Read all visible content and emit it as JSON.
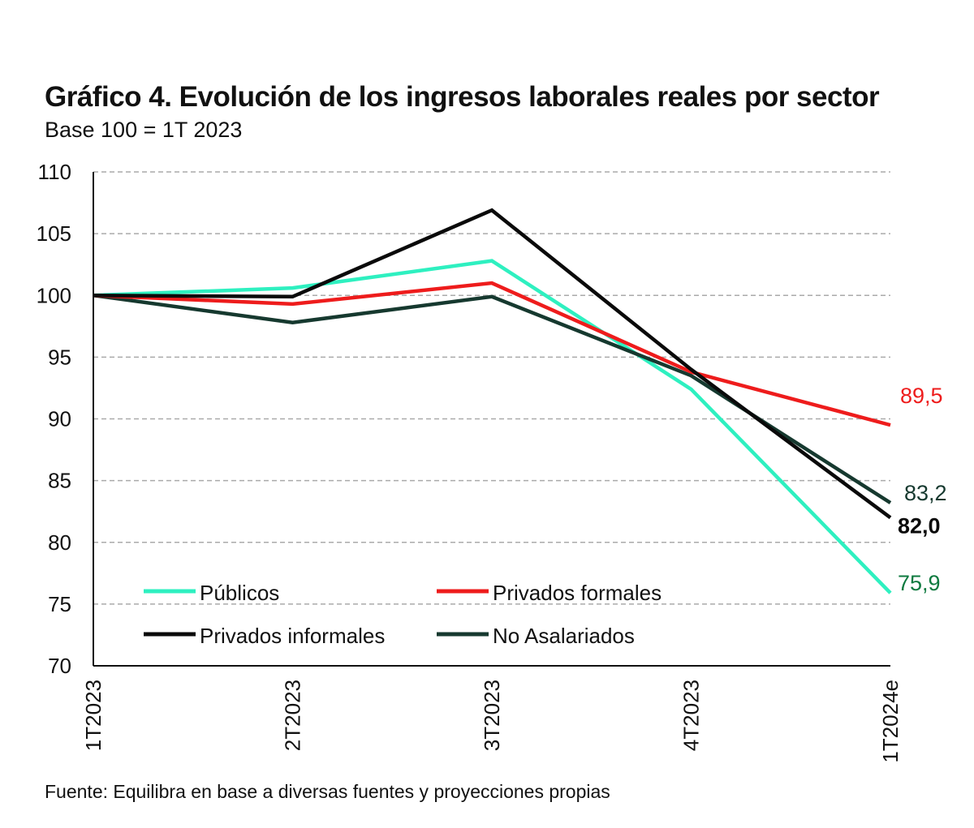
{
  "title": "Gráfico 4. Evolución de los ingresos laborales reales por sector",
  "subtitle": "Base 100 = 1T 2023",
  "source": "Fuente: Equilibra en base a diversas fuentes y proyecciones propias",
  "chart_data": {
    "type": "line",
    "title": "Gráfico 4. Evolución de los ingresos laborales reales por sector",
    "subtitle": "Base 100 = 1T 2023",
    "categories": [
      "1T2023",
      "2T2023",
      "3T2023",
      "4T2023",
      "1T2024e"
    ],
    "ylim": [
      70,
      110
    ],
    "yticks": [
      70,
      75,
      80,
      85,
      90,
      95,
      100,
      105,
      110
    ],
    "grid": true,
    "legend_position": "bottom-left",
    "series": [
      {
        "name": "Públicos",
        "values": [
          100,
          100.6,
          102.8,
          92.4,
          75.9
        ],
        "color": "#2ef0c0",
        "end_label": "75,9",
        "end_label_color": "#0e7a3f"
      },
      {
        "name": "Privados formales",
        "values": [
          100,
          99.3,
          101.0,
          93.8,
          89.5
        ],
        "color": "#ee1c1c",
        "end_label": "89,5",
        "end_label_color": "#ee1c1c"
      },
      {
        "name": "Privados informales",
        "values": [
          100,
          99.9,
          106.9,
          94.0,
          82.0
        ],
        "color": "#0a0a0a",
        "end_label": "82,0",
        "end_label_color": "#0a0a0a"
      },
      {
        "name": "No Asalariados",
        "values": [
          100,
          97.8,
          99.9,
          93.5,
          83.2
        ],
        "color": "#16392f",
        "end_label": "83,2",
        "end_label_color": "#16392f"
      }
    ]
  }
}
